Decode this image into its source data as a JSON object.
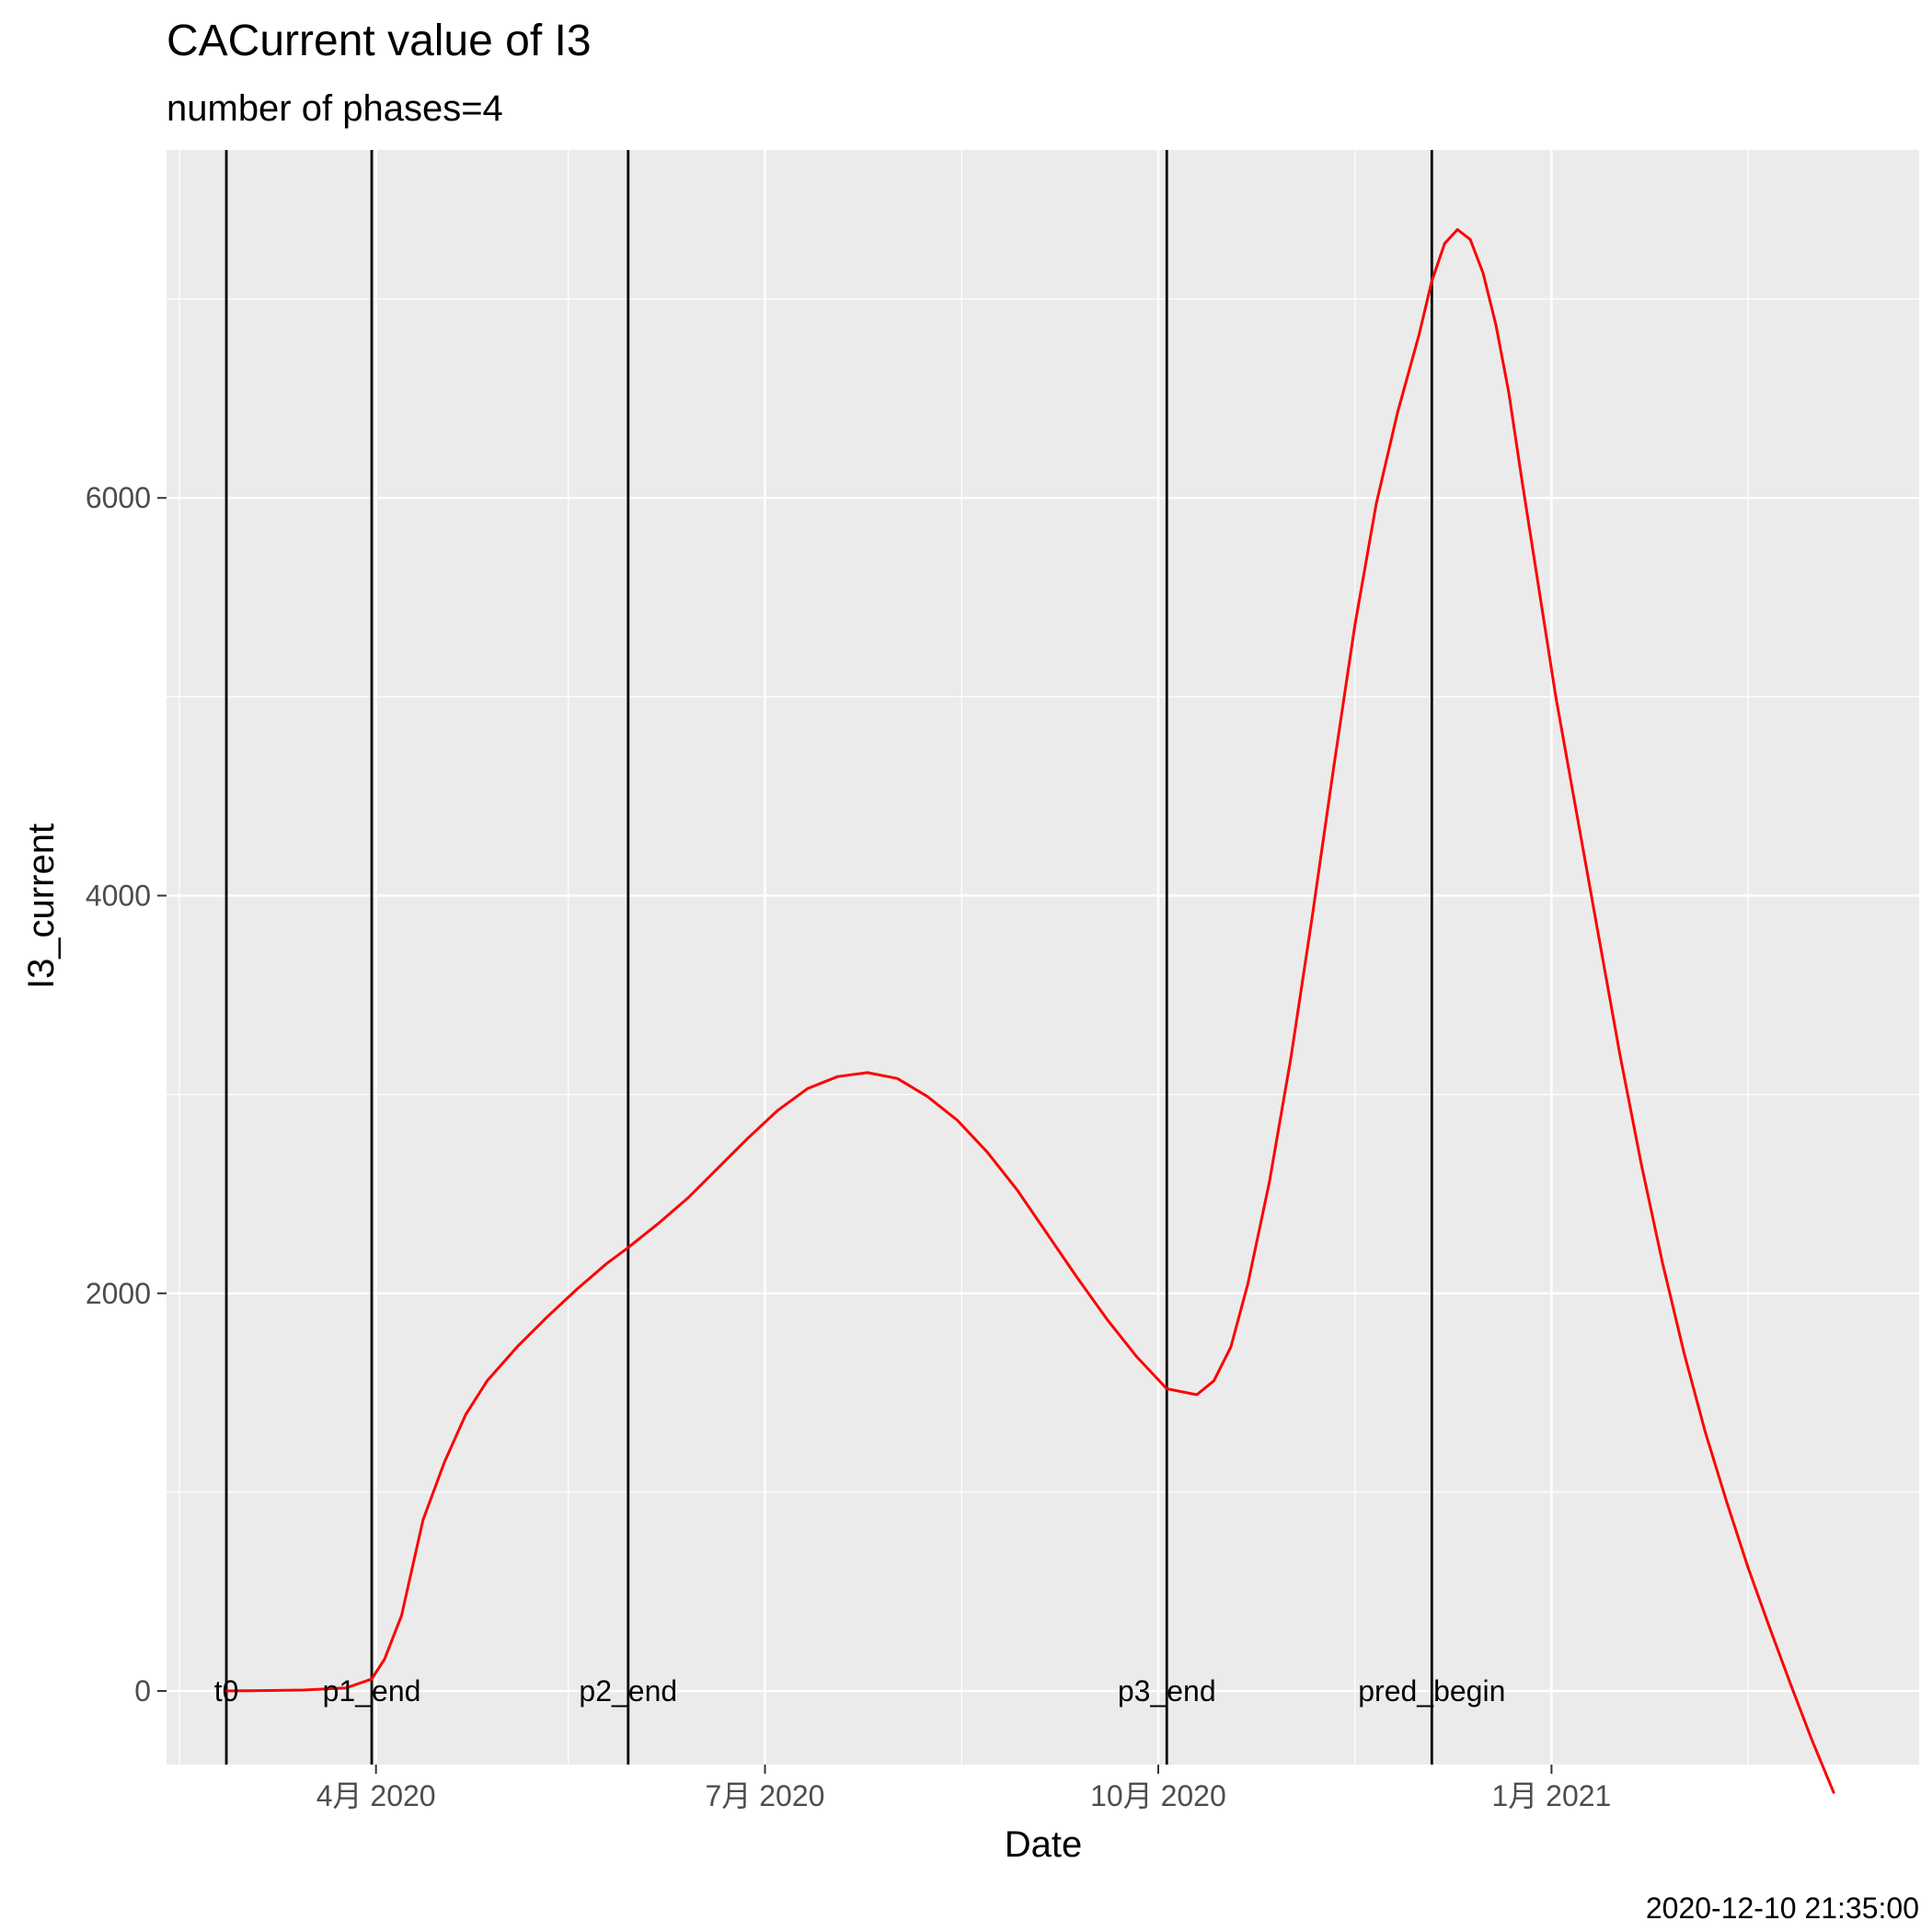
{
  "chart_data": {
    "type": "line",
    "title": "CACurrent value of I3",
    "subtitle": "number of phases=4",
    "xlabel": "Date",
    "ylabel": "I3_current",
    "caption": "2020-12-10 21:35:00",
    "x_type": "date",
    "xlim": [
      "2020-02-12",
      "2021-03-28"
    ],
    "ylim": [
      -370,
      7750
    ],
    "x_ticks": [
      {
        "date": "2020-04-01",
        "label": "4月 2020"
      },
      {
        "date": "2020-07-01",
        "label": "7月 2020"
      },
      {
        "date": "2020-10-01",
        "label": "10月 2020"
      },
      {
        "date": "2021-01-01",
        "label": "1月 2021"
      }
    ],
    "y_ticks": [
      {
        "value": 0,
        "label": "0"
      },
      {
        "value": 2000,
        "label": "2000"
      },
      {
        "value": 4000,
        "label": "4000"
      },
      {
        "value": 6000,
        "label": "6000"
      }
    ],
    "grid": true,
    "legend": "none",
    "colors": {
      "panel": "#ebebeb",
      "grid": "#ffffff",
      "series": "#ff0000",
      "event_line": "#000000",
      "tick_text": "#4d4d4d"
    },
    "events": [
      {
        "label": "t0",
        "date": "2020-02-26"
      },
      {
        "label": "p1_end",
        "date": "2020-03-31"
      },
      {
        "label": "p2_end",
        "date": "2020-05-30"
      },
      {
        "label": "p3_end",
        "date": "2020-10-03"
      },
      {
        "label": "pred_begin",
        "date": "2020-12-04"
      }
    ],
    "series": [
      {
        "x": [
          "2020-02-26",
          "2020-03-05",
          "2020-03-15",
          "2020-03-25",
          "2020-03-31",
          "2020-04-03",
          "2020-04-07",
          "2020-04-12",
          "2020-04-17",
          "2020-04-22",
          "2020-04-27",
          "2020-05-04",
          "2020-05-11",
          "2020-05-18",
          "2020-05-25",
          "2020-05-30",
          "2020-06-06",
          "2020-06-13",
          "2020-06-20",
          "2020-06-27",
          "2020-07-04",
          "2020-07-11",
          "2020-07-18",
          "2020-07-25",
          "2020-08-01",
          "2020-08-08",
          "2020-08-15",
          "2020-08-22",
          "2020-08-29",
          "2020-09-05",
          "2020-09-12",
          "2020-09-19",
          "2020-09-26",
          "2020-10-03",
          "2020-10-10",
          "2020-10-14",
          "2020-10-18",
          "2020-10-22",
          "2020-10-27",
          "2020-11-01",
          "2020-11-06",
          "2020-11-11",
          "2020-11-16",
          "2020-11-21",
          "2020-11-26",
          "2020-12-01",
          "2020-12-04",
          "2020-12-07",
          "2020-12-10",
          "2020-12-13",
          "2020-12-16",
          "2020-12-19",
          "2020-12-22",
          "2020-12-25",
          "2020-12-29",
          "2021-01-02",
          "2021-01-07",
          "2021-01-12",
          "2021-01-17",
          "2021-01-22",
          "2021-01-27",
          "2021-02-01",
          "2021-02-06",
          "2021-02-11",
          "2021-02-16",
          "2021-02-21",
          "2021-02-26",
          "2021-03-03",
          "2021-03-08"
        ],
        "y": [
          0,
          2,
          5,
          15,
          60,
          160,
          380,
          860,
          1150,
          1390,
          1560,
          1730,
          1880,
          2020,
          2150,
          2230,
          2350,
          2480,
          2630,
          2780,
          2920,
          3030,
          3090,
          3110,
          3080,
          2990,
          2870,
          2710,
          2520,
          2300,
          2080,
          1870,
          1680,
          1520,
          1490,
          1560,
          1730,
          2050,
          2560,
          3180,
          3890,
          4640,
          5360,
          5970,
          6430,
          6820,
          7090,
          7280,
          7350,
          7300,
          7130,
          6870,
          6530,
          6100,
          5550,
          5000,
          4400,
          3800,
          3200,
          2650,
          2150,
          1700,
          1300,
          950,
          620,
          320,
          30,
          -250,
          -510
        ]
      }
    ]
  }
}
